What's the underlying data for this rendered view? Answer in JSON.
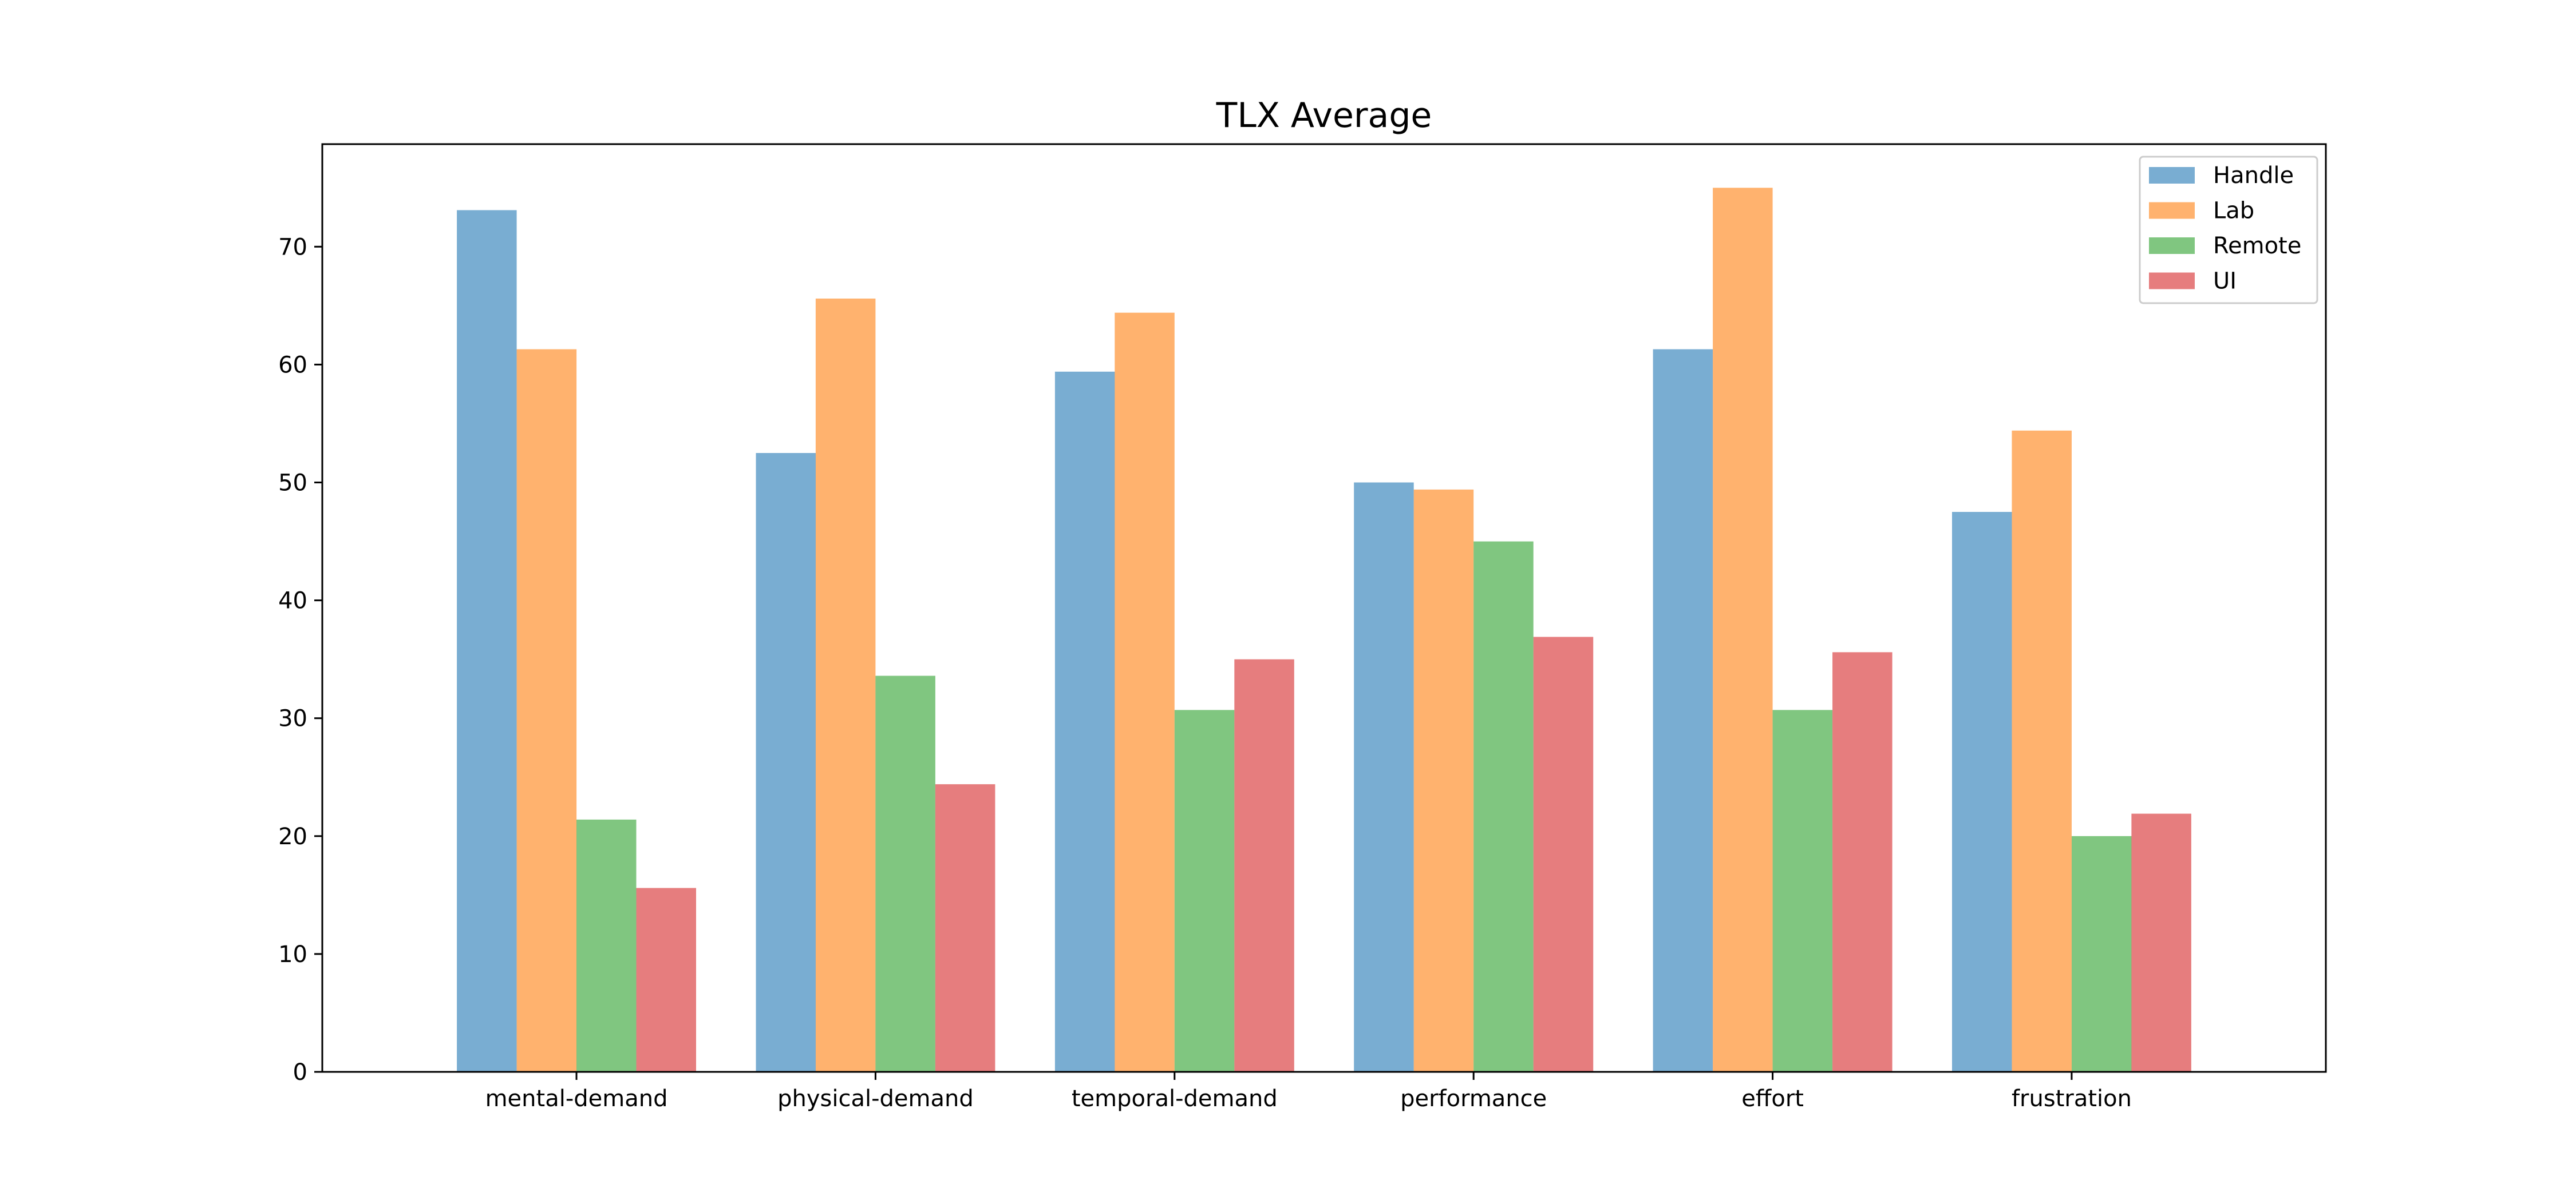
{
  "chart_data": {
    "type": "bar",
    "title": "TLX Average",
    "xlabel": "",
    "ylabel": "",
    "categories": [
      "mental-demand",
      "physical-demand",
      "temporal-demand",
      "performance",
      "effort",
      "frustration"
    ],
    "series": [
      {
        "name": "Handle",
        "color": "#1f77b4",
        "values": [
          73.1,
          52.5,
          59.4,
          50.0,
          61.3,
          47.5
        ]
      },
      {
        "name": "Lab",
        "color": "#ff7f0e",
        "values": [
          61.3,
          65.6,
          64.4,
          49.4,
          75.0,
          54.4
        ]
      },
      {
        "name": "Remote",
        "color": "#2ca02c",
        "values": [
          21.4,
          33.6,
          30.7,
          45.0,
          30.7,
          20.0
        ]
      },
      {
        "name": "UI",
        "color": "#d62728",
        "values": [
          15.6,
          24.4,
          35.0,
          36.9,
          35.6,
          21.9
        ]
      }
    ],
    "bar_opacity": 0.6,
    "ylim": [
      0,
      78.7
    ],
    "yticks": [
      0,
      10,
      20,
      30,
      40,
      50,
      60,
      70
    ],
    "grid": false,
    "legend_position": "top-right"
  }
}
